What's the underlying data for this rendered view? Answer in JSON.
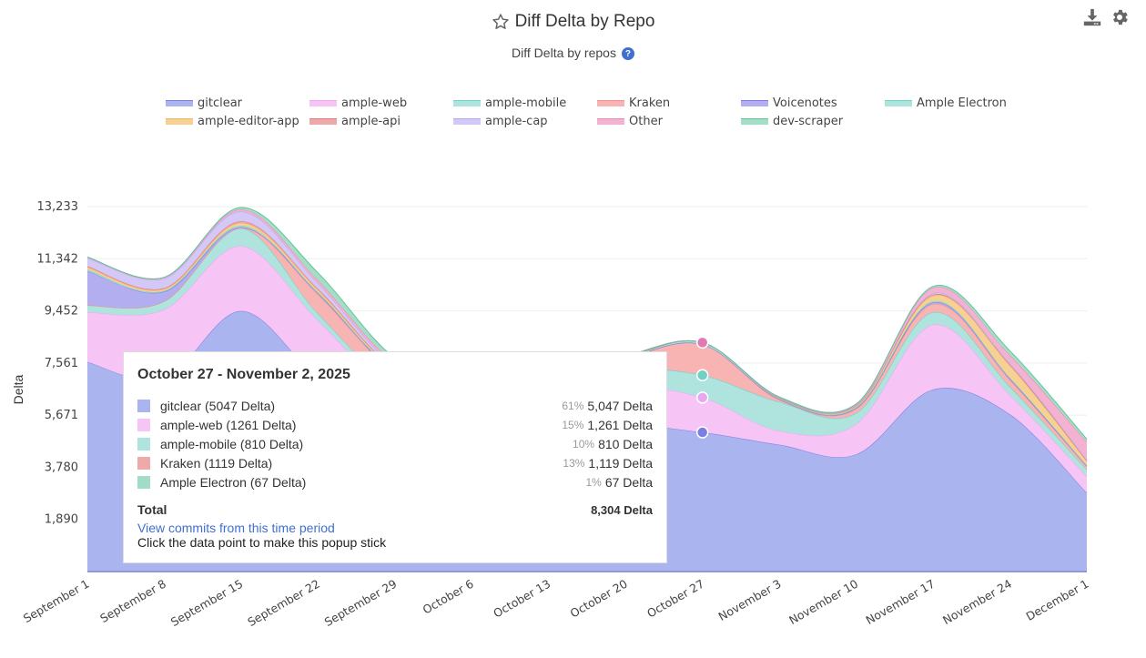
{
  "header": {
    "title": "Diff Delta by Repo",
    "subtitle": "Diff Delta by repos",
    "help_symbol": "?",
    "icons": [
      "star-icon",
      "help-icon",
      "download-icon",
      "gear-icon"
    ]
  },
  "legend": [
    {
      "name": "gitclear",
      "color": "#aab4ee",
      "stroke": "#7b7fe0"
    },
    {
      "name": "ample-web",
      "color": "#f6c5f6",
      "stroke": "#f0a6f0"
    },
    {
      "name": "ample-mobile",
      "color": "#aee3de",
      "stroke": "#6fd0c4"
    },
    {
      "name": "Kraken",
      "color": "#f7b4b2",
      "stroke": "#f08f8c"
    },
    {
      "name": "Voicenotes",
      "color": "#b3aef0",
      "stroke": "#7f77e6"
    },
    {
      "name": "Ample Electron",
      "color": "#ade4dc",
      "stroke": "#74d2c4"
    },
    {
      "name": "ample-editor-app",
      "color": "#f6d193",
      "stroke": "#f1b85c"
    },
    {
      "name": "ample-api",
      "color": "#eda8ab",
      "stroke": "#e0787d"
    },
    {
      "name": "ample-cap",
      "color": "#d3c8f6",
      "stroke": "#b6a6ee"
    },
    {
      "name": "Other",
      "color": "#f4b2d2",
      "stroke": "#e889b8"
    },
    {
      "name": "dev-scraper",
      "color": "#a6dec5",
      "stroke": "#5fc59b"
    }
  ],
  "tooltip": {
    "title": "October 27 - November 2, 2025",
    "rows": [
      {
        "label": "gitclear (5047 Delta)",
        "pct": "61%",
        "value": "5,047 Delta",
        "color": "#aab4ee"
      },
      {
        "label": "ample-web (1261 Delta)",
        "pct": "15%",
        "value": "1,261 Delta",
        "color": "#f6c5f6"
      },
      {
        "label": "ample-mobile (810 Delta)",
        "pct": "10%",
        "value": "810 Delta",
        "color": "#aee3de"
      },
      {
        "label": "Kraken (1119 Delta)",
        "pct": "13%",
        "value": "1,119 Delta",
        "color": "#f0a9a9"
      },
      {
        "label": "Ample Electron (67 Delta)",
        "pct": "1%",
        "value": "67 Delta",
        "color": "#a2dcc6"
      }
    ],
    "total_label": "Total",
    "total_value": "8,304 Delta",
    "link": "View commits from this time period",
    "hint": "Click the data point to make this popup stick"
  },
  "chart_data": {
    "type": "area",
    "stacked": true,
    "title": "Diff Delta by Repo",
    "subtitle": "Diff Delta by repos",
    "xlabel": "",
    "ylabel": "Delta",
    "ylim": [
      0,
      13233
    ],
    "yticks": [
      1890,
      3780,
      5671,
      7561,
      9452,
      11342,
      13233
    ],
    "ytick_labels": [
      "1,890",
      "3,780",
      "5,671",
      "7,561",
      "9,452",
      "11,342",
      "13,233"
    ],
    "grid": true,
    "legend_position": "top",
    "categories": [
      "September 1",
      "September 8",
      "September 15",
      "September 22",
      "September 29",
      "October 6",
      "October 13",
      "October 20",
      "October 27",
      "November 3",
      "November 10",
      "November 17",
      "November 24",
      "December 1"
    ],
    "series": [
      {
        "name": "gitclear",
        "values": [
          7600,
          7000,
          9450,
          7000,
          5200,
          5000,
          5000,
          5300,
          5047,
          4600,
          4250,
          6600,
          5700,
          2850
        ]
      },
      {
        "name": "ample-web",
        "values": [
          1800,
          2500,
          2350,
          2100,
          1300,
          1200,
          1200,
          1400,
          1261,
          500,
          1100,
          2350,
          700,
          600
        ]
      },
      {
        "name": "ample-mobile",
        "values": [
          250,
          300,
          650,
          250,
          250,
          200,
          200,
          600,
          810,
          1050,
          400,
          450,
          300,
          250
        ]
      },
      {
        "name": "Kraken",
        "values": [
          0,
          0,
          0,
          700,
          500,
          300,
          300,
          400,
          1119,
          80,
          150,
          300,
          250,
          100
        ]
      },
      {
        "name": "Voicenotes",
        "values": [
          1250,
          350,
          40,
          40,
          30,
          20,
          20,
          20,
          0,
          20,
          30,
          60,
          40,
          30
        ]
      },
      {
        "name": "Ample Electron",
        "values": [
          50,
          30,
          50,
          30,
          30,
          20,
          20,
          20,
          67,
          20,
          30,
          40,
          30,
          20
        ]
      },
      {
        "name": "ample-editor-app",
        "values": [
          80,
          60,
          100,
          80,
          50,
          30,
          30,
          20,
          0,
          20,
          40,
          200,
          450,
          150
        ]
      },
      {
        "name": "ample-api",
        "values": [
          40,
          40,
          60,
          50,
          30,
          20,
          20,
          10,
          0,
          10,
          20,
          40,
          30,
          20
        ]
      },
      {
        "name": "ample-cap",
        "values": [
          300,
          350,
          350,
          200,
          100,
          50,
          50,
          20,
          0,
          10,
          20,
          50,
          40,
          30
        ]
      },
      {
        "name": "Other",
        "values": [
          30,
          40,
          80,
          100,
          100,
          50,
          50,
          20,
          0,
          20,
          30,
          200,
          300,
          650
        ]
      },
      {
        "name": "dev-scraper",
        "values": [
          0,
          0,
          70,
          280,
          160,
          60,
          60,
          0,
          0,
          0,
          10,
          50,
          160,
          100
        ]
      }
    ],
    "hover_category": "October 27"
  }
}
